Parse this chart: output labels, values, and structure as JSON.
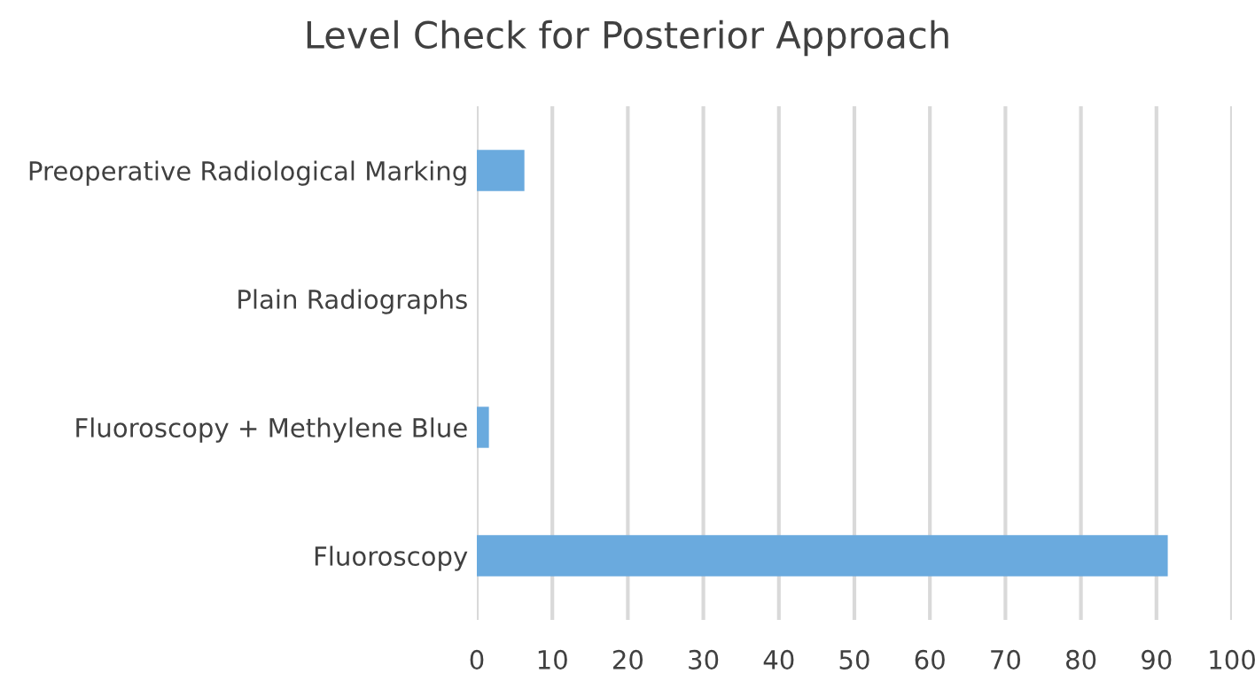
{
  "chart_data": {
    "type": "bar",
    "orientation": "horizontal",
    "title": "Level Check for Posterior Approach",
    "categories": [
      "Preoperative Radiological Marking",
      "Plain Radiographs",
      "Fluoroscopy + Methylene Blue",
      "Fluoroscopy"
    ],
    "values": [
      6.3,
      0,
      1.6,
      91.5
    ],
    "color": "#6aaade",
    "xlim": [
      0,
      100
    ],
    "xticks": [
      0,
      10,
      20,
      30,
      40,
      50,
      60,
      70,
      80,
      90,
      100
    ],
    "grid": "x"
  }
}
